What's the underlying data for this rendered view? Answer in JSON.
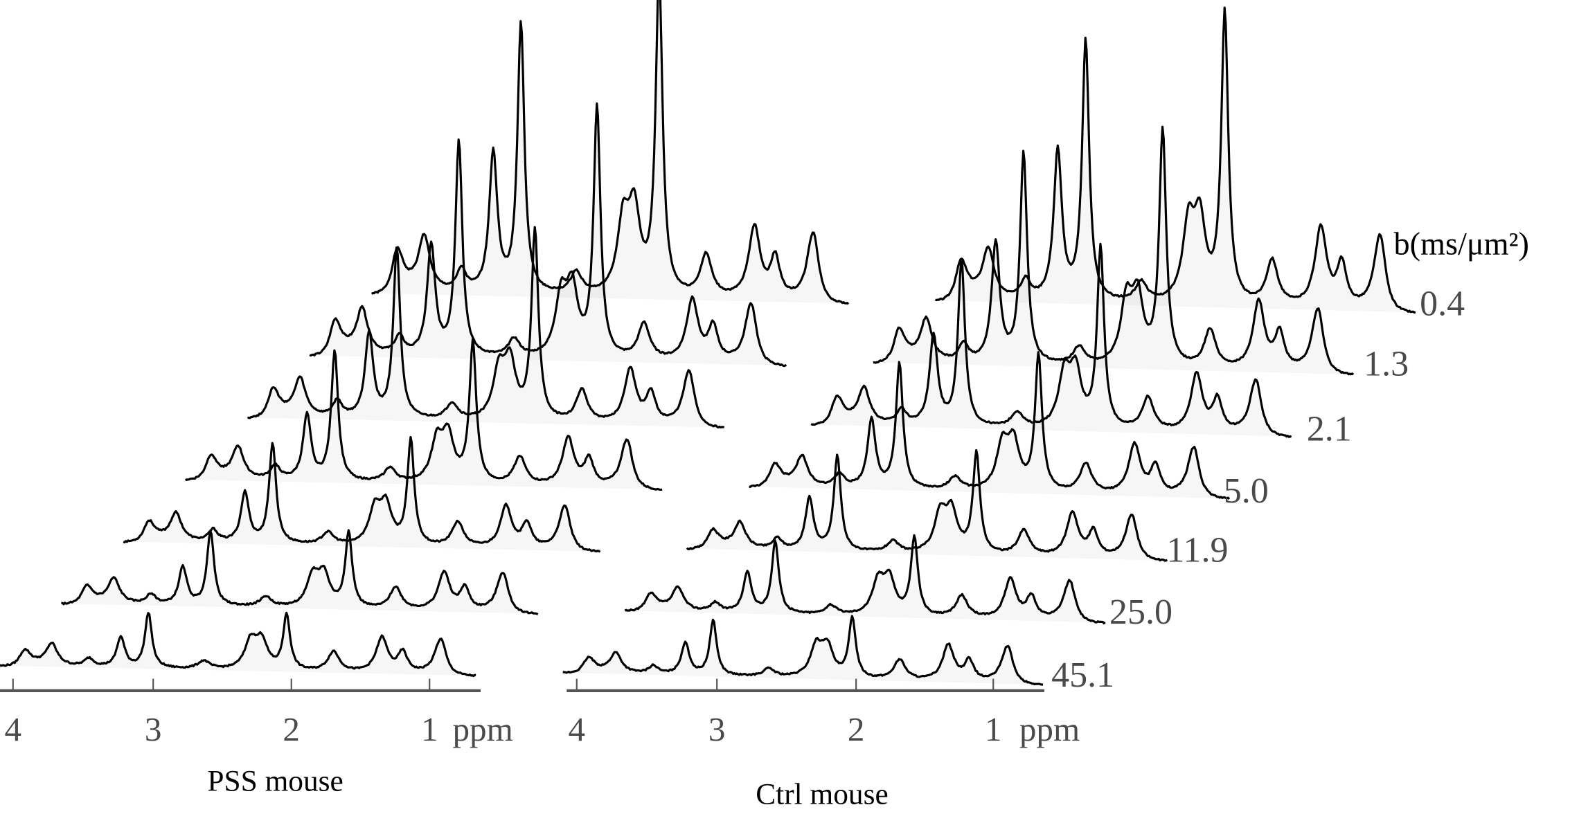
{
  "chart_data": {
    "type": "line",
    "subtype": "stacked NMR spectra (waterfall)",
    "xlabel": "ppm",
    "x_ticks": [
      "4",
      "3",
      "2",
      "1"
    ],
    "x_unit_label": "ppm",
    "xlim": [
      4.1,
      0.65
    ],
    "legend_title": "b(ms/μm²)",
    "b_values": [
      "0.4",
      "1.3",
      "2.1",
      "5.0",
      "11.9",
      "25.0",
      "45.1"
    ],
    "peak_ppm": [
      3.92,
      3.72,
      3.45,
      3.22,
      3.02,
      2.62,
      2.28,
      2.2,
      2.02,
      1.68,
      1.33,
      1.18,
      0.9
    ],
    "peak_width_ppm": [
      0.05,
      0.05,
      0.04,
      0.035,
      0.03,
      0.05,
      0.05,
      0.05,
      0.03,
      0.05,
      0.05,
      0.04,
      0.05
    ],
    "panels": [
      {
        "title": "PSS mouse",
        "series": [
          {
            "b": "0.4",
            "amplitudes": [
              68,
              55,
              22,
              140,
              270,
              22,
              70,
              80,
              320,
              42,
              72,
              40,
              78
            ]
          },
          {
            "b": "1.3",
            "amplitudes": [
              55,
              45,
              18,
              110,
              215,
              18,
              58,
              65,
              250,
              36,
              62,
              34,
              68
            ]
          },
          {
            "b": "2.1",
            "amplitudes": [
              45,
              38,
              16,
              85,
              170,
              16,
              48,
              55,
              190,
              32,
              55,
              30,
              62
            ]
          },
          {
            "b": "5.0",
            "amplitudes": [
              38,
              32,
              14,
              65,
              130,
              14,
              40,
              45,
              140,
              28,
              48,
              26,
              55
            ]
          },
          {
            "b": "11.9",
            "amplitudes": [
              32,
              28,
              12,
              50,
              100,
              12,
              35,
              38,
              105,
              25,
              42,
              24,
              50
            ]
          },
          {
            "b": "25.0",
            "amplitudes": [
              28,
              25,
              10,
              38,
              75,
              10,
              30,
              32,
              75,
              22,
              38,
              22,
              45
            ]
          },
          {
            "b": "45.1",
            "amplitudes": [
              25,
              22,
              8,
              30,
              55,
              8,
              28,
              28,
              55,
              20,
              35,
              20,
              40
            ]
          }
        ]
      },
      {
        "title": "Ctrl mouse",
        "series": [
          {
            "b": "0.4",
            "amplitudes": [
              62,
              50,
              20,
              150,
              260,
              20,
              75,
              78,
              290,
              45,
              80,
              42,
              85
            ]
          },
          {
            "b": "1.3",
            "amplitudes": [
              52,
              42,
              18,
              120,
              210,
              18,
              62,
              64,
              235,
              38,
              68,
              36,
              72
            ]
          },
          {
            "b": "2.1",
            "amplitudes": [
              44,
              36,
              15,
              90,
              165,
              15,
              52,
              54,
              180,
              33,
              58,
              32,
              62
            ]
          },
          {
            "b": "5.0",
            "amplitudes": [
              36,
              30,
              13,
              68,
              125,
              13,
              44,
              46,
              135,
              29,
              50,
              28,
              56
            ]
          },
          {
            "b": "11.9",
            "amplitudes": [
              30,
              26,
              11,
              52,
              95,
              11,
              38,
              40,
              100,
              25,
              44,
              25,
              50
            ]
          },
          {
            "b": "25.0",
            "amplitudes": [
              27,
              23,
              9,
              40,
              72,
              9,
              33,
              35,
              78,
              22,
              40,
              22,
              46
            ]
          },
          {
            "b": "45.1",
            "amplitudes": [
              24,
              20,
              8,
              32,
              55,
              8,
              30,
              30,
              60,
              20,
              36,
              20,
              42
            ]
          }
        ]
      }
    ]
  }
}
